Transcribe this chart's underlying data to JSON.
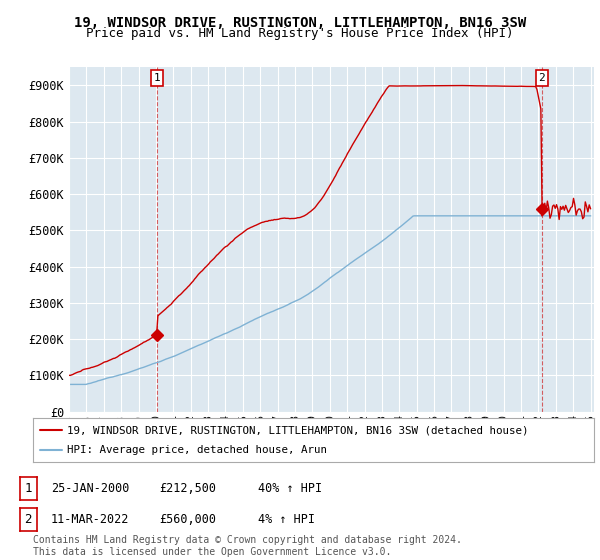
{
  "title": "19, WINDSOR DRIVE, RUSTINGTON, LITTLEHAMPTON, BN16 3SW",
  "subtitle": "Price paid vs. HM Land Registry's House Price Index (HPI)",
  "title_fontsize": 10,
  "subtitle_fontsize": 9,
  "ylabel_ticks": [
    "£0",
    "£100K",
    "£200K",
    "£300K",
    "£400K",
    "£500K",
    "£600K",
    "£700K",
    "£800K",
    "£900K"
  ],
  "ytick_values": [
    0,
    100000,
    200000,
    300000,
    400000,
    500000,
    600000,
    700000,
    800000,
    900000
  ],
  "ylim": [
    0,
    950000
  ],
  "xlim_start": 1995.3,
  "xlim_end": 2025.2,
  "background_color": "#ffffff",
  "plot_bg_color": "#dde8f0",
  "grid_color": "#ffffff",
  "red_line_color": "#cc0000",
  "blue_line_color": "#7fb2d4",
  "marker1_x": 2000.07,
  "marker1_y": 212500,
  "marker2_x": 2022.19,
  "marker2_y": 560000,
  "annotation1_date": "25-JAN-2000",
  "annotation1_price": "£212,500",
  "annotation1_hpi": "40% ↑ HPI",
  "annotation2_date": "11-MAR-2022",
  "annotation2_price": "£560,000",
  "annotation2_hpi": "4% ↑ HPI",
  "legend_line1": "19, WINDSOR DRIVE, RUSTINGTON, LITTLEHAMPTON, BN16 3SW (detached house)",
  "legend_line2": "HPI: Average price, detached house, Arun",
  "footer": "Contains HM Land Registry data © Crown copyright and database right 2024.\nThis data is licensed under the Open Government Licence v3.0.",
  "xtick_years": [
    1995,
    1996,
    1997,
    1998,
    1999,
    2000,
    2001,
    2002,
    2003,
    2004,
    2005,
    2006,
    2007,
    2008,
    2009,
    2010,
    2011,
    2012,
    2013,
    2014,
    2015,
    2016,
    2017,
    2018,
    2019,
    2020,
    2021,
    2022,
    2023,
    2024,
    2025
  ]
}
